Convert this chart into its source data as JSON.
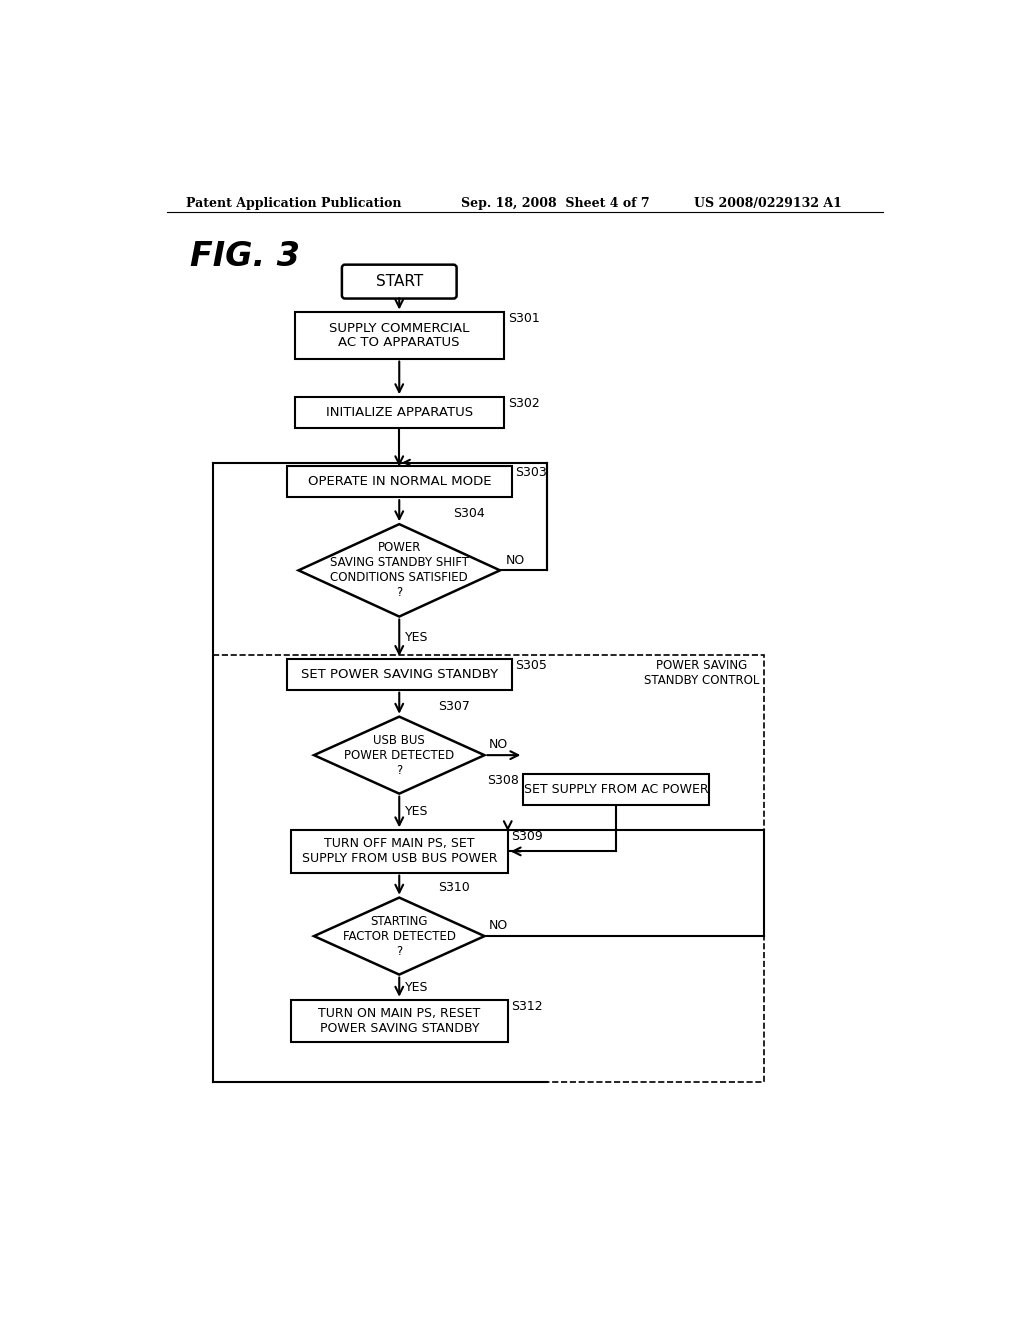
{
  "header_left": "Patent Application Publication",
  "header_center": "Sep. 18, 2008  Sheet 4 of 7",
  "header_right": "US 2008/0229132 A1",
  "fig_label": "FIG. 3",
  "background_color": "#ffffff",
  "start_label": "START",
  "nodes": [
    {
      "id": "s301",
      "step": "S301",
      "label": "SUPPLY COMMERCIAL\nAC TO APPARATUS",
      "type": "rect"
    },
    {
      "id": "s302",
      "step": "S302",
      "label": "INITIALIZE APPARATUS",
      "type": "rect"
    },
    {
      "id": "s303",
      "step": "S303",
      "label": "OPERATE IN NORMAL MODE",
      "type": "rect"
    },
    {
      "id": "s304",
      "step": "S304",
      "label": "POWER\nSAVING STANDBY SHIFT\nCONDITIONS SATISFIED\n?",
      "type": "diamond"
    },
    {
      "id": "s305",
      "step": "S305",
      "label": "SET POWER SAVING STANDBY",
      "type": "rect"
    },
    {
      "id": "s307",
      "step": "S307",
      "label": "USB BUS\nPOWER DETECTED\n?",
      "type": "diamond"
    },
    {
      "id": "s308",
      "step": "S308",
      "label": "SET SUPPLY FROM AC POWER",
      "type": "rect"
    },
    {
      "id": "s309",
      "step": "S309",
      "label": "TURN OFF MAIN PS, SET\nSUPPLY FROM USB BUS POWER",
      "type": "rect"
    },
    {
      "id": "s310",
      "step": "S310",
      "label": "STARTING\nFACTOR DETECTED\n?",
      "type": "diamond"
    },
    {
      "id": "s312",
      "step": "S312",
      "label": "TURN ON MAIN PS, RESET\nPOWER SAVING STANDBY",
      "type": "rect"
    }
  ],
  "power_saving_label": "POWER SAVING\nSTANDBY CONTROL"
}
